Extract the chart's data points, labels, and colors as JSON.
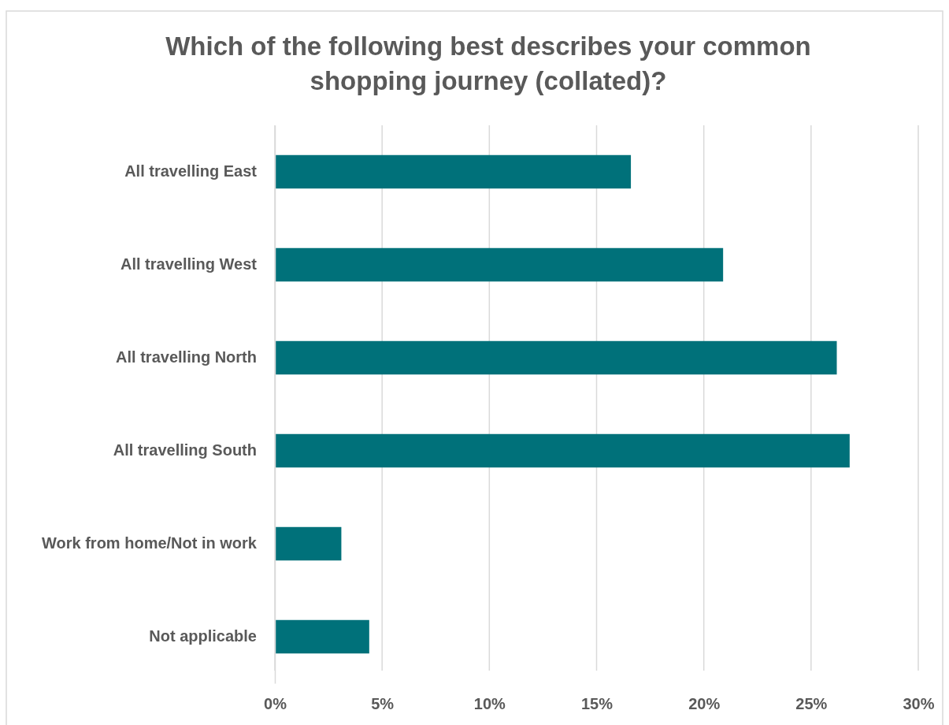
{
  "chart_data": {
    "type": "bar",
    "orientation": "horizontal",
    "title": "Which of the following best describes your common shopping journey (collated)?",
    "categories": [
      "All travelling East",
      "All travelling West",
      "All travelling North",
      "All travelling South",
      "Work from home/Not in work",
      "Not applicable"
    ],
    "values": [
      16.6,
      20.9,
      26.2,
      26.8,
      3.1,
      4.4
    ],
    "color": "#00717a",
    "xlim": [
      0,
      30
    ],
    "xticks": [
      {
        "value": 0,
        "label": "0%"
      },
      {
        "value": 5,
        "label": "5%"
      },
      {
        "value": 10,
        "label": "10%"
      },
      {
        "value": 15,
        "label": "15%"
      },
      {
        "value": 20,
        "label": "20%"
      },
      {
        "value": 25,
        "label": "25%"
      },
      {
        "value": 30,
        "label": "30%"
      }
    ],
    "grid": "x"
  }
}
